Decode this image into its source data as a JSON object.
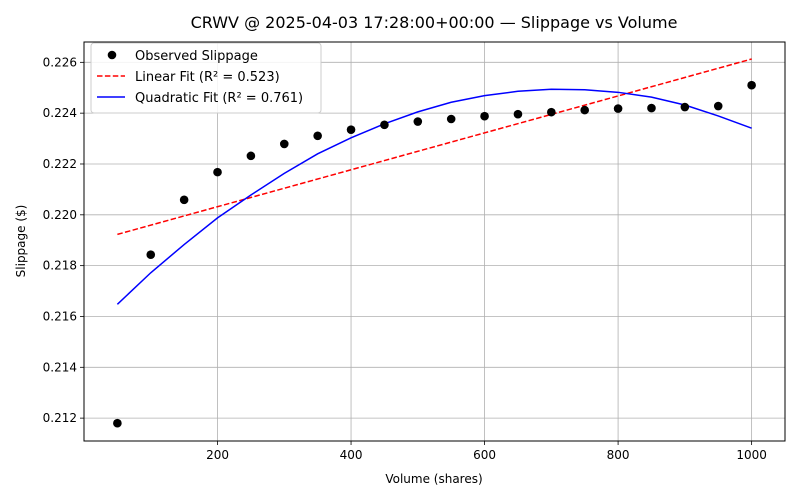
{
  "chart_data": {
    "type": "scatter",
    "title": "CRWV @ 2025-04-03 17:28:00+00:00 — Slippage vs Volume",
    "xlabel": "Volume (shares)",
    "ylabel": "Slippage ($)",
    "xlim": [
      0,
      1050
    ],
    "ylim": [
      0.2111,
      0.2268
    ],
    "xticks": [
      200,
      400,
      600,
      800,
      1000
    ],
    "yticks": [
      0.212,
      0.214,
      0.216,
      0.218,
      0.22,
      0.222,
      0.224,
      0.226
    ],
    "grid": true,
    "legend_position": "top-left",
    "series": [
      {
        "name": "Observed Slippage",
        "kind": "scatter",
        "color": "#000000",
        "x": [
          50,
          100,
          150,
          200,
          250,
          300,
          350,
          400,
          450,
          500,
          550,
          600,
          650,
          700,
          750,
          800,
          850,
          900,
          950,
          1000
        ],
        "y": [
          0.2118,
          0.21843,
          0.22059,
          0.22168,
          0.22232,
          0.22279,
          0.22311,
          0.22335,
          0.22354,
          0.22367,
          0.22377,
          0.22388,
          0.22396,
          0.22404,
          0.22412,
          0.22418,
          0.2242,
          0.22424,
          0.22428,
          0.2251
        ]
      },
      {
        "name": "Linear Fit (R² = 0.523)",
        "kind": "line",
        "style": "dashed",
        "color": "#ff0000",
        "x": [
          50,
          1000
        ],
        "y": [
          0.21923,
          0.22613
        ]
      },
      {
        "name": "Quadratic Fit (R² = 0.761)",
        "kind": "line",
        "style": "solid",
        "color": "#0000ff",
        "x": [
          50,
          100,
          150,
          200,
          250,
          300,
          350,
          400,
          450,
          500,
          550,
          600,
          650,
          700,
          750,
          800,
          850,
          900,
          950,
          1000
        ],
        "y": [
          0.21648,
          0.21772,
          0.21883,
          0.21988,
          0.22078,
          0.22163,
          0.2224,
          0.22303,
          0.22358,
          0.22405,
          0.22443,
          0.22469,
          0.22486,
          0.22494,
          0.22492,
          0.22482,
          0.22463,
          0.22432,
          0.22389,
          0.22341
        ]
      }
    ]
  }
}
